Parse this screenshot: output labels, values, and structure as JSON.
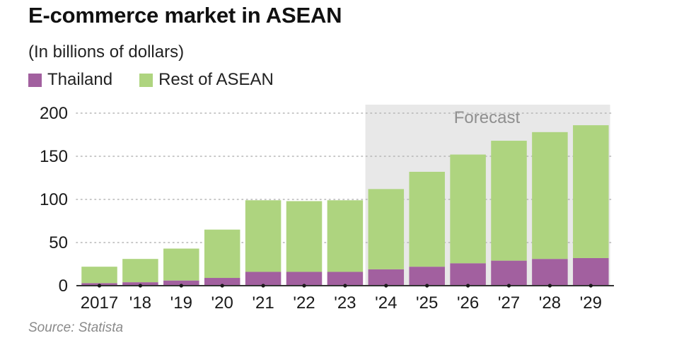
{
  "title": "E-commerce market in ASEAN",
  "subtitle": "(In billions of dollars)",
  "source": "Source: Statista",
  "colors": {
    "thailand": "#a2609f",
    "rest": "#aed47f",
    "forecast_band": "#e8e8e8",
    "grid": "#b5b5b5",
    "axis": "#333333"
  },
  "chart_data": {
    "type": "bar",
    "stacked": true,
    "categories": [
      "2017",
      "'18",
      "'19",
      "'20",
      "'21",
      "'22",
      "'23",
      "'24",
      "'25",
      "'26",
      "'27",
      "'28",
      "'29"
    ],
    "series": [
      {
        "name": "Thailand",
        "color": "#a2609f",
        "values": [
          3,
          4,
          6,
          9,
          16,
          16,
          16,
          19,
          22,
          26,
          29,
          31,
          32
        ]
      },
      {
        "name": "Rest of ASEAN",
        "color": "#aed47f",
        "values": [
          19,
          27,
          37,
          56,
          83,
          82,
          83,
          93,
          110,
          126,
          139,
          147,
          154
        ]
      }
    ],
    "ylim": [
      0,
      200
    ],
    "yticks": [
      0,
      50,
      100,
      150,
      200
    ],
    "grid": true,
    "forecast": {
      "label": "Forecast",
      "from_category": "'24",
      "to_category": "'29"
    },
    "legend": "top-left"
  }
}
